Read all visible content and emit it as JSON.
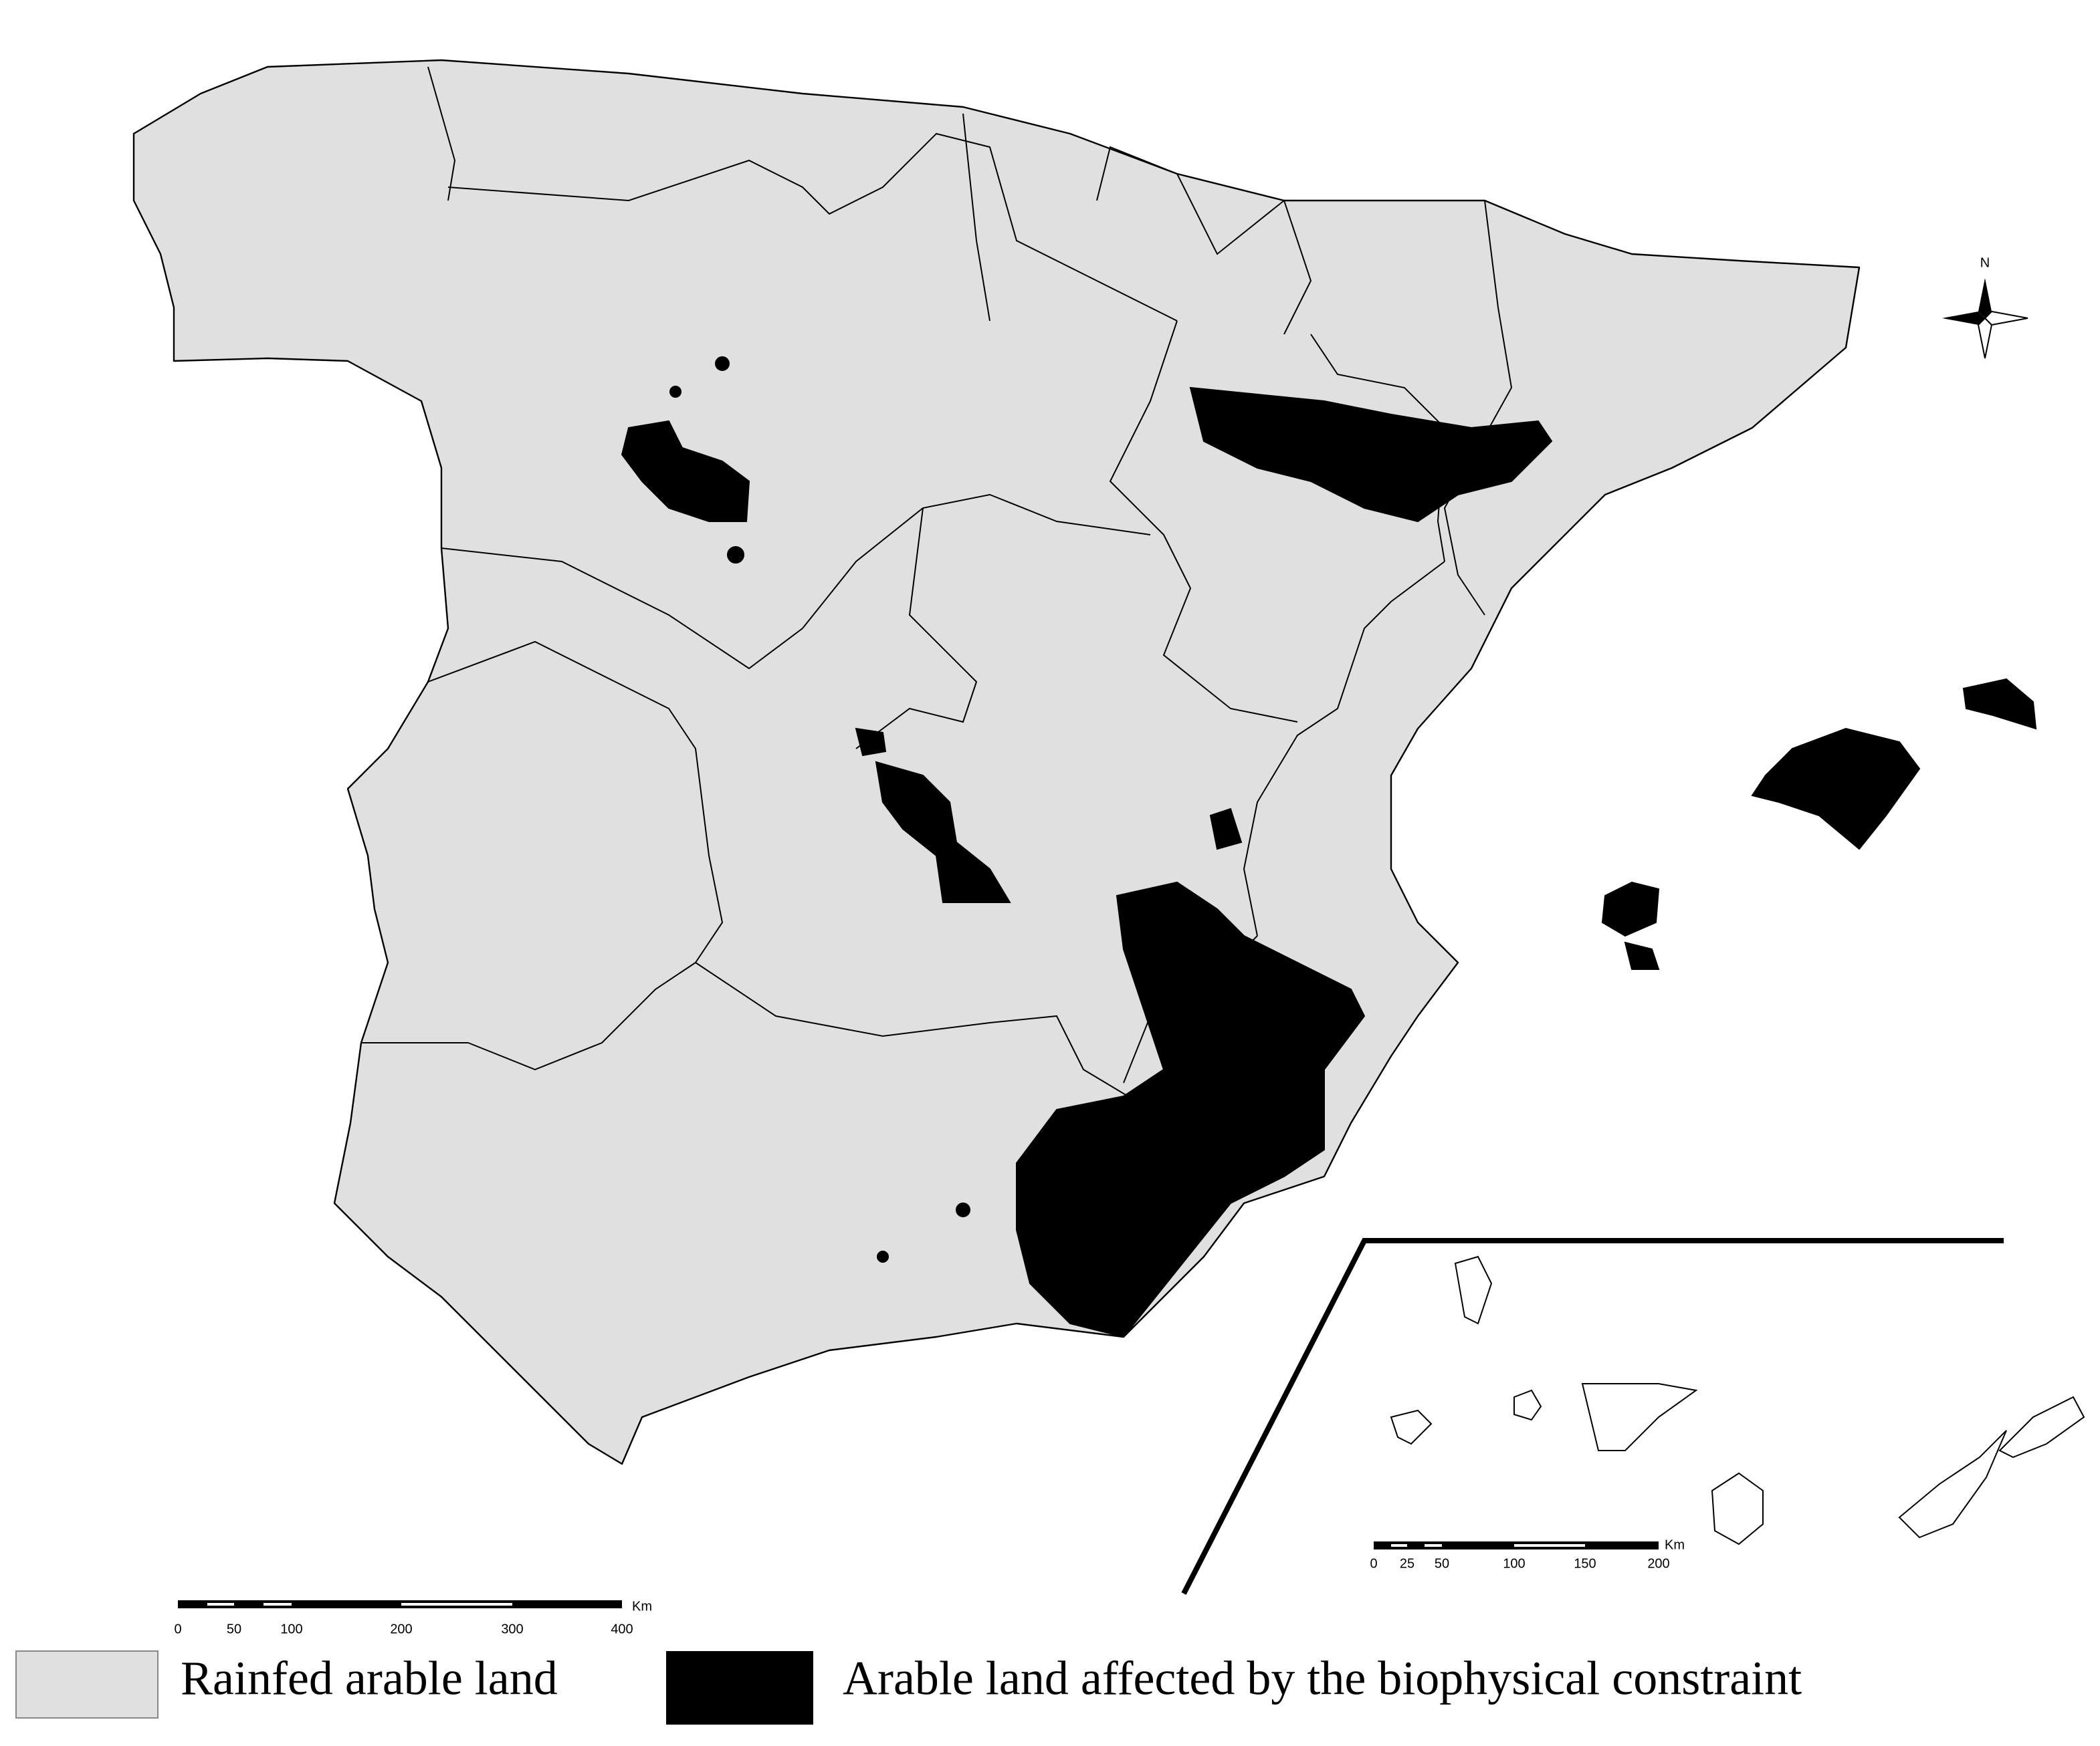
{
  "north_arrow": {
    "label": "N"
  },
  "scale_bar": {
    "labels": [
      "0",
      "50",
      "100",
      "200",
      "300",
      "400"
    ],
    "unit": "Km"
  },
  "inset_scale_bar": {
    "labels": [
      "0",
      "25",
      "50",
      "100",
      "150",
      "200"
    ],
    "unit": "Km"
  },
  "legend": {
    "items": [
      {
        "label": "Rainfed arable land"
      },
      {
        "label": "Arable land affected by the biophysical constraint"
      }
    ]
  }
}
